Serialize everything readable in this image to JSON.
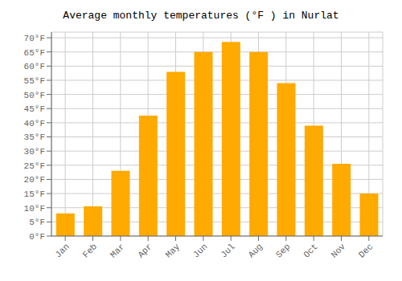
{
  "chart_data": {
    "type": "bar",
    "title": "Average monthly temperatures (°F ) in Nurlat",
    "categories": [
      "Jan",
      "Feb",
      "Mar",
      "Apr",
      "May",
      "Jun",
      "Jul",
      "Aug",
      "Sep",
      "Oct",
      "Nov",
      "Dec"
    ],
    "values": [
      8,
      10.5,
      23,
      42.5,
      58,
      65,
      68.5,
      65,
      54,
      39,
      25.5,
      15
    ],
    "color": "#FFAA00",
    "ylim": [
      0,
      72
    ],
    "yticks": [
      {
        "value": 0,
        "label": "0°F"
      },
      {
        "value": 5,
        "label": "5°F"
      },
      {
        "value": 10,
        "label": "10°F"
      },
      {
        "value": 15,
        "label": "15°F"
      },
      {
        "value": 20,
        "label": "20°F"
      },
      {
        "value": 25,
        "label": "25°F"
      },
      {
        "value": 30,
        "label": "30°F"
      },
      {
        "value": 35,
        "label": "35°F"
      },
      {
        "value": 40,
        "label": "40°F"
      },
      {
        "value": 45,
        "label": "45°F"
      },
      {
        "value": 50,
        "label": "50°F"
      },
      {
        "value": 55,
        "label": "55°F"
      },
      {
        "value": 60,
        "label": "60°F"
      },
      {
        "value": 65,
        "label": "65°F"
      },
      {
        "value": 70,
        "label": "70°F"
      }
    ],
    "grid": true
  }
}
